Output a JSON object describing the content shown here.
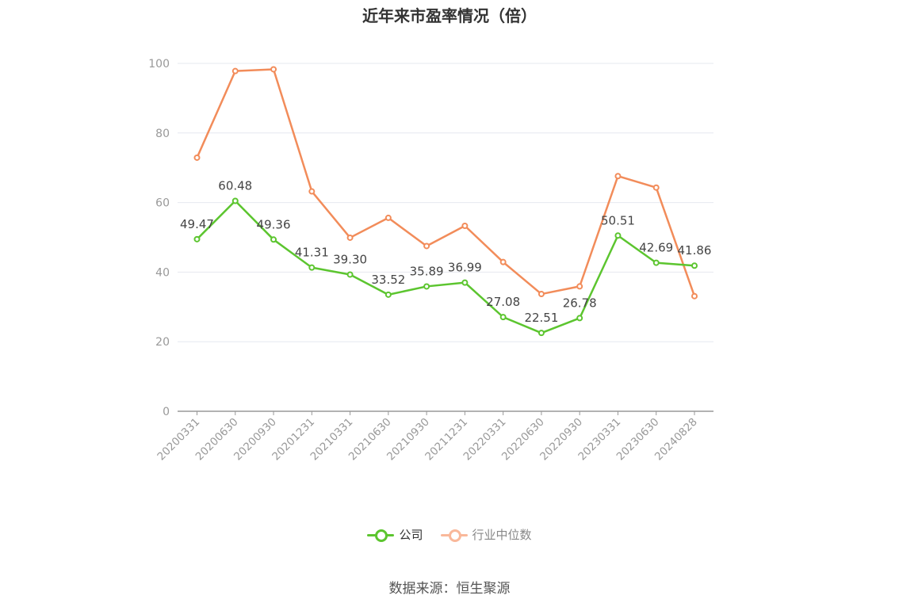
{
  "chart_data": {
    "type": "line",
    "title": "近年来市盈率情况（倍）",
    "categories": [
      "20200331",
      "20200630",
      "20200930",
      "20201231",
      "20210331",
      "20210630",
      "20210930",
      "20211231",
      "20220331",
      "20220630",
      "20220930",
      "20230331",
      "20230630",
      "20240828"
    ],
    "series": [
      {
        "name": "公司",
        "color": "#5cc52f",
        "values": [
          49.47,
          60.48,
          49.36,
          41.31,
          39.3,
          33.52,
          35.89,
          36.99,
          27.08,
          22.51,
          26.78,
          50.51,
          42.69,
          41.86
        ],
        "labels": [
          "49.47",
          "60.48",
          "49.36",
          "41.31",
          "39.30",
          "33.52",
          "35.89",
          "36.99",
          "27.08",
          "22.51",
          "26.78",
          "50.51",
          "42.69",
          "41.86"
        ]
      },
      {
        "name": "行业中位数",
        "color": "#f28c5a",
        "values": [
          72.9,
          97.8,
          98.3,
          63.2,
          49.9,
          55.6,
          47.5,
          53.3,
          42.9,
          33.7,
          35.9,
          67.6,
          64.3,
          33.1
        ]
      }
    ],
    "yticks": [
      0,
      20,
      40,
      60,
      80,
      100
    ],
    "ylim": [
      0,
      100
    ],
    "grid": true,
    "legend": "bottom"
  },
  "legend_items": [
    {
      "label": "公司",
      "color": "#5cc52f"
    },
    {
      "label": "行业中位数",
      "color": "#f9b89a"
    }
  ],
  "source_note": "数据来源：恒生聚源"
}
